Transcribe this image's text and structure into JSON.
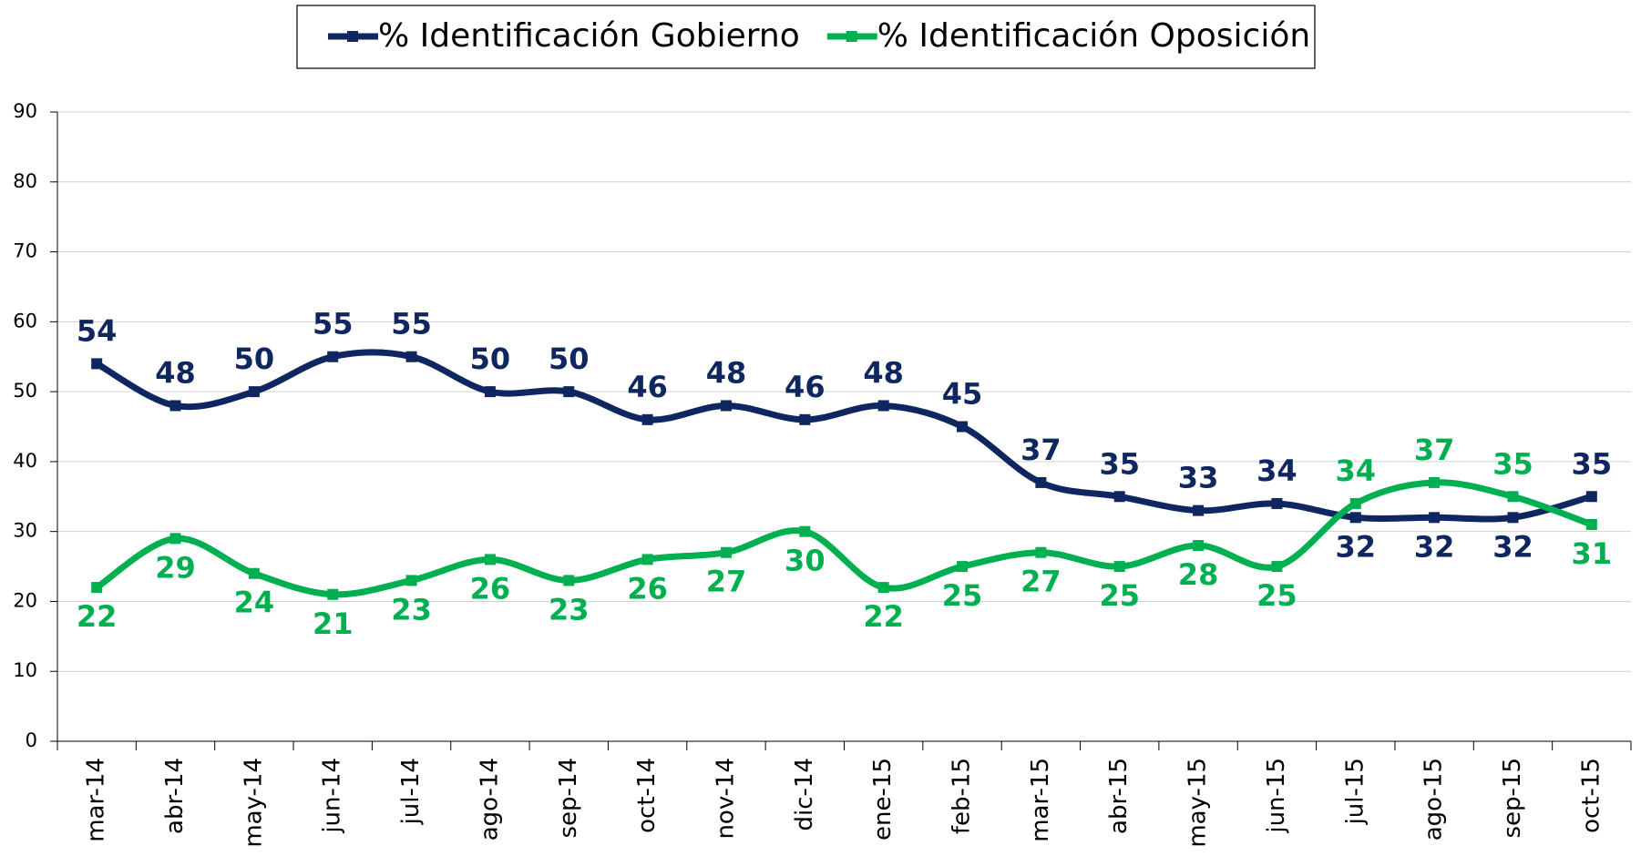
{
  "chart_data": {
    "type": "line",
    "categories": [
      "mar-14",
      "abr-14",
      "may-14",
      "jun-14",
      "jul-14",
      "ago-14",
      "sep-14",
      "oct-14",
      "nov-14",
      "dic-14",
      "ene-15",
      "feb-15",
      "mar-15",
      "abr-15",
      "may-15",
      "jun-15",
      "jul-15",
      "ago-15",
      "sep-15",
      "oct-15"
    ],
    "series": [
      {
        "name": "% Identificación Gobierno",
        "color": "#0f2660",
        "values": [
          54,
          48,
          50,
          55,
          55,
          50,
          50,
          46,
          48,
          46,
          48,
          45,
          37,
          35,
          33,
          34,
          32,
          32,
          32,
          35
        ]
      },
      {
        "name": "% Identificación Oposición",
        "color": "#00b050",
        "values": [
          22,
          29,
          24,
          21,
          23,
          26,
          23,
          26,
          27,
          30,
          22,
          25,
          27,
          25,
          28,
          25,
          34,
          37,
          35,
          31
        ]
      }
    ],
    "ylim": [
      0,
      90
    ],
    "yticks": [
      0,
      10,
      20,
      30,
      40,
      50,
      60,
      70,
      80,
      90
    ],
    "grid": true,
    "legend": "top"
  }
}
